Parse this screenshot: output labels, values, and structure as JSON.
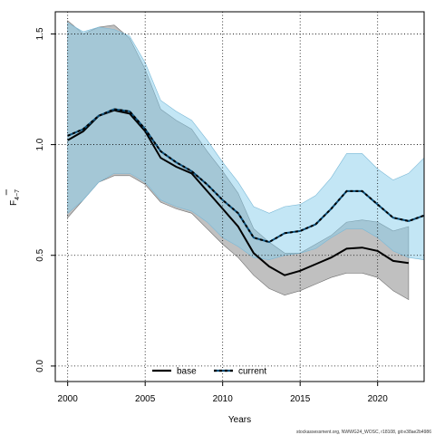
{
  "chart_data": {
    "type": "line",
    "xlabel": "Years",
    "ylabel_main": "F",
    "ylabel_sub": "4−7",
    "xlim": [
      1999.2,
      2023.0
    ],
    "ylim": [
      -0.07,
      1.6
    ],
    "xticks": [
      2000,
      2005,
      2010,
      2015,
      2020
    ],
    "yticks": [
      0.0,
      0.5,
      1.0,
      1.5
    ],
    "ytick_labels": [
      "0.0",
      "0.5",
      "1.0",
      "1.5"
    ],
    "grid": true,
    "legend_position": "bottom-center",
    "series": [
      {
        "name": "base",
        "color": "#000000",
        "band_color": "#8c8c8c",
        "line_style": "solid",
        "x": [
          2000,
          2001,
          2002,
          2003,
          2004,
          2005,
          2006,
          2007,
          2008,
          2009,
          2010,
          2011,
          2012,
          2013,
          2014,
          2015,
          2016,
          2017,
          2018,
          2019,
          2020,
          2021,
          2022
        ],
        "y": [
          1.02,
          1.06,
          1.13,
          1.155,
          1.14,
          1.06,
          0.94,
          0.9,
          0.87,
          0.79,
          0.71,
          0.63,
          0.51,
          0.45,
          0.41,
          0.43,
          0.46,
          0.49,
          0.53,
          0.535,
          0.52,
          0.475,
          0.465
        ],
        "lower": [
          0.67,
          0.75,
          0.83,
          0.86,
          0.86,
          0.82,
          0.74,
          0.71,
          0.69,
          0.62,
          0.55,
          0.49,
          0.41,
          0.35,
          0.32,
          0.34,
          0.37,
          0.4,
          0.42,
          0.42,
          0.4,
          0.34,
          0.3
        ],
        "upper": [
          1.56,
          1.5,
          1.53,
          1.54,
          1.48,
          1.34,
          1.16,
          1.11,
          1.07,
          0.97,
          0.88,
          0.78,
          0.62,
          0.56,
          0.51,
          0.51,
          0.55,
          0.59,
          0.65,
          0.66,
          0.65,
          0.61,
          0.63
        ]
      },
      {
        "name": "current",
        "color": "#0a4f7a",
        "dash_color": "#000000",
        "band_color": "#87ceeb",
        "line_style": "dashed",
        "x": [
          2000,
          2001,
          2002,
          2003,
          2004,
          2005,
          2006,
          2007,
          2008,
          2009,
          2010,
          2011,
          2012,
          2013,
          2014,
          2015,
          2016,
          2017,
          2018,
          2019,
          2020,
          2021,
          2022,
          2023
        ],
        "y": [
          1.04,
          1.07,
          1.13,
          1.16,
          1.15,
          1.07,
          0.97,
          0.92,
          0.88,
          0.82,
          0.75,
          0.69,
          0.58,
          0.56,
          0.6,
          0.61,
          0.64,
          0.71,
          0.79,
          0.79,
          0.73,
          0.67,
          0.655,
          0.68
        ],
        "lower": [
          0.69,
          0.75,
          0.83,
          0.87,
          0.87,
          0.83,
          0.75,
          0.72,
          0.7,
          0.65,
          0.58,
          0.54,
          0.49,
          0.48,
          0.5,
          0.51,
          0.53,
          0.58,
          0.62,
          0.62,
          0.58,
          0.52,
          0.49,
          0.48
        ],
        "upper": [
          1.55,
          1.51,
          1.53,
          1.52,
          1.49,
          1.37,
          1.2,
          1.15,
          1.11,
          1.02,
          0.92,
          0.83,
          0.72,
          0.69,
          0.72,
          0.73,
          0.77,
          0.85,
          0.96,
          0.96,
          0.89,
          0.84,
          0.87,
          0.94
        ]
      }
    ]
  },
  "watermark": "stockassessment.org, NWWG24_WOSC, r18108, git:e38ae2b4986"
}
